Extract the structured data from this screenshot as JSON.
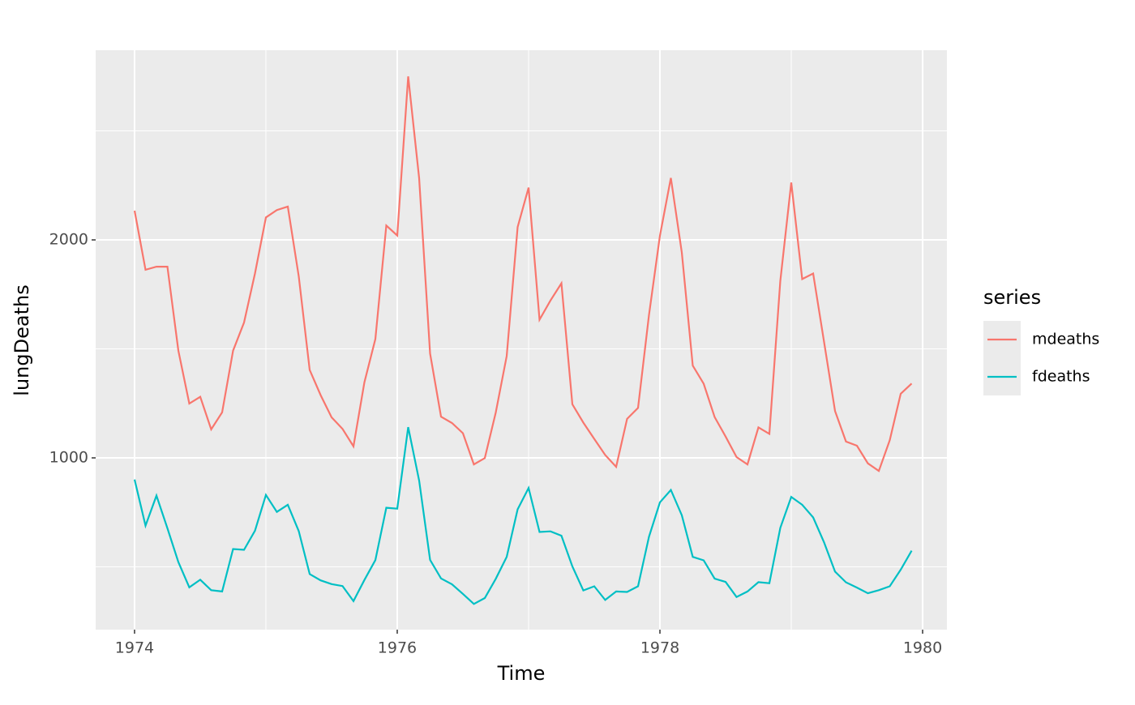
{
  "chart_data": {
    "type": "line",
    "x_label": "Time",
    "y_label": "lungDeaths",
    "x": [
      1974,
      1974.0833,
      1974.1667,
      1974.25,
      1974.3333,
      1974.4167,
      1974.5,
      1974.5833,
      1974.6667,
      1974.75,
      1974.8333,
      1974.9167,
      1975,
      1975.0833,
      1975.1667,
      1975.25,
      1975.3333,
      1975.4167,
      1975.5,
      1975.5833,
      1975.6667,
      1975.75,
      1975.8333,
      1975.9167,
      1976,
      1976.0833,
      1976.1667,
      1976.25,
      1976.3333,
      1976.4167,
      1976.5,
      1976.5833,
      1976.6667,
      1976.75,
      1976.8333,
      1976.9167,
      1977,
      1977.0833,
      1977.1667,
      1977.25,
      1977.3333,
      1977.4167,
      1977.5,
      1977.5833,
      1977.6667,
      1977.75,
      1977.8333,
      1977.9167,
      1978,
      1978.0833,
      1978.1667,
      1978.25,
      1978.3333,
      1978.4167,
      1978.5,
      1978.5833,
      1978.6667,
      1978.75,
      1978.8333,
      1978.9167,
      1979,
      1979.0833,
      1979.1667,
      1979.25,
      1979.3333,
      1979.4167,
      1979.5,
      1979.5833,
      1979.6667,
      1979.75,
      1979.8333,
      1979.9167
    ],
    "series": [
      {
        "name": "mdeaths",
        "color": "#F8766D",
        "values": [
          2134,
          1863,
          1877,
          1877,
          1492,
          1249,
          1280,
          1131,
          1209,
          1492,
          1621,
          1846,
          2103,
          2137,
          2153,
          1833,
          1403,
          1288,
          1186,
          1133,
          1053,
          1347,
          1545,
          2066,
          2020,
          2750,
          2283,
          1479,
          1189,
          1160,
          1113,
          970,
          999,
          1208,
          1467,
          2059,
          2240,
          1634,
          1722,
          1801,
          1246,
          1162,
          1087,
          1013,
          959,
          1179,
          1229,
          1655,
          2019,
          2284,
          1942,
          1423,
          1340,
          1187,
          1098,
          1004,
          970,
          1140,
          1110,
          1812,
          2263,
          1820,
          1846,
          1531,
          1215,
          1075,
          1056,
          975,
          940,
          1081,
          1294,
          1341
        ]
      },
      {
        "name": "fdeaths",
        "color": "#00BFC4",
        "values": [
          901,
          689,
          827,
          677,
          522,
          406,
          441,
          393,
          387,
          582,
          578,
          666,
          830,
          752,
          785,
          664,
          467,
          438,
          421,
          412,
          343,
          440,
          531,
          771,
          767,
          1141,
          896,
          532,
          447,
          420,
          376,
          330,
          357,
          445,
          546,
          764,
          862,
          660,
          663,
          643,
          502,
          392,
          411,
          348,
          387,
          385,
          411,
          638,
          796,
          853,
          737,
          546,
          530,
          446,
          431,
          362,
          387,
          430,
          425,
          679,
          821,
          785,
          727,
          612,
          478,
          429,
          405,
          379,
          393,
          411,
          487,
          574
        ]
      }
    ],
    "legend_title": "series",
    "xlim": [
      1973.704,
      1980.185
    ],
    "xticks": [
      1974,
      1976,
      1978,
      1980
    ],
    "xminor": [
      1975,
      1977,
      1979
    ],
    "ylim": [
      212,
      2870
    ],
    "yticks": [
      1000,
      2000
    ],
    "yminor": [
      500,
      1500,
      2500
    ],
    "grid": true,
    "legend": "right"
  }
}
